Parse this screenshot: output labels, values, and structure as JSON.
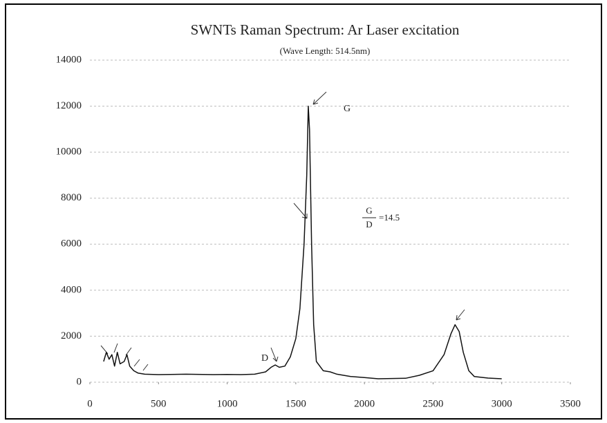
{
  "chart_data": {
    "type": "line",
    "title": "SWNTs Raman Spectrum: Ar Laser excitation",
    "subtitle": "(Wave Length: 514.5nm)",
    "annotations": {
      "peak_g": "G",
      "peak_d": "D",
      "ratio_numerator": "G",
      "ratio_denominator": "D",
      "ratio_value": "=14.5"
    },
    "x": [
      100,
      120,
      140,
      160,
      180,
      200,
      220,
      250,
      270,
      290,
      320,
      350,
      400,
      500,
      700,
      900,
      1000,
      1100,
      1200,
      1280,
      1320,
      1350,
      1380,
      1420,
      1460,
      1500,
      1530,
      1560,
      1580,
      1591,
      1600,
      1615,
      1630,
      1650,
      1700,
      1750,
      1800,
      1900,
      2000,
      2100,
      2300,
      2400,
      2500,
      2580,
      2630,
      2660,
      2690,
      2720,
      2760,
      2800,
      2900,
      3000
    ],
    "series": [
      {
        "color": "#111111",
        "values": [
          900,
          1300,
          1000,
          1200,
          700,
          1300,
          800,
          900,
          1200,
          700,
          500,
          400,
          350,
          330,
          350,
          330,
          340,
          330,
          350,
          450,
          650,
          750,
          650,
          700,
          1100,
          1900,
          3200,
          6000,
          9000,
          12000,
          11000,
          6000,
          2500,
          900,
          500,
          450,
          350,
          250,
          200,
          150,
          170,
          300,
          500,
          1200,
          2100,
          2500,
          2200,
          1300,
          500,
          250,
          180,
          150
        ]
      }
    ],
    "xlim": [
      0,
      3500
    ],
    "xticks": [
      0,
      500,
      1000,
      1500,
      2000,
      2500,
      3000,
      3500
    ],
    "ylim": [
      0,
      14000
    ],
    "yticks": [
      0,
      2000,
      4000,
      6000,
      8000,
      10000,
      12000,
      14000
    ],
    "grid": true
  }
}
